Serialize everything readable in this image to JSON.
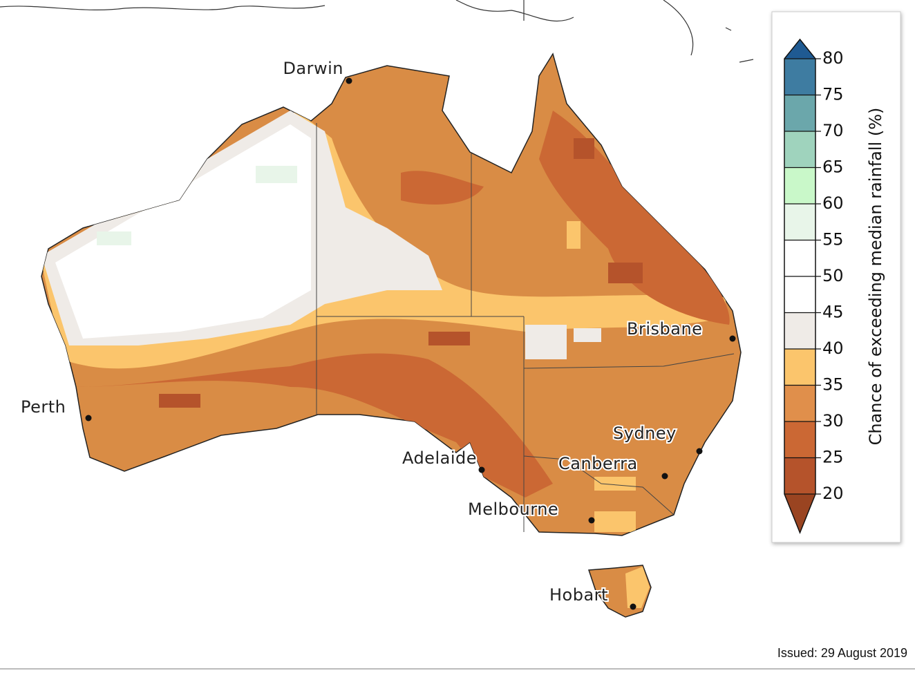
{
  "map": {
    "cities": [
      {
        "name": "Darwin"
      },
      {
        "name": "Perth"
      },
      {
        "name": "Adelaide"
      },
      {
        "name": "Melbourne"
      },
      {
        "name": "Canberra"
      },
      {
        "name": "Sydney"
      },
      {
        "name": "Brisbane"
      },
      {
        "name": "Hobart"
      }
    ]
  },
  "colorbar": {
    "label": "Chance of exceeding median rainfall (%)",
    "ticks": [
      20,
      25,
      30,
      35,
      40,
      45,
      50,
      55,
      60,
      65,
      70,
      75,
      80
    ],
    "colors": [
      "#b5532b",
      "#cb6834",
      "#e08f4b",
      "#fbc56c",
      "#efebe7",
      "#ffffff",
      "#ffffff",
      "#e8f5e9",
      "#c9f8c9",
      "#9fd3bd",
      "#6ba7ab",
      "#3e7ca1"
    ],
    "under_color": "#9a4421",
    "over_color": "#1f5a92"
  },
  "footer": {
    "issued": "Issued: 29 August 2019"
  }
}
